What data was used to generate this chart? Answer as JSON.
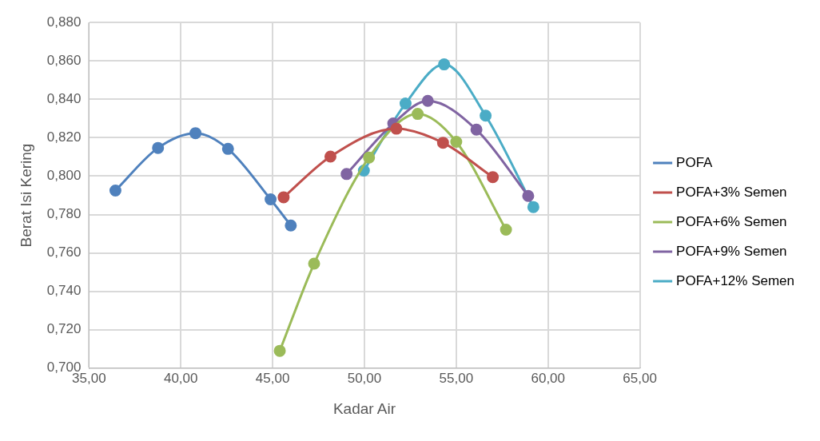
{
  "chart_data": {
    "type": "line",
    "xlabel": "Kadar Air",
    "ylabel": "Berat Isi Kering",
    "xlim": [
      35,
      65
    ],
    "xticks": [
      {
        "value": 35,
        "label": "35,00"
      },
      {
        "value": 40,
        "label": "40,00"
      },
      {
        "value": 45,
        "label": "45,00"
      },
      {
        "value": 50,
        "label": "50,00"
      },
      {
        "value": 55,
        "label": "55,00"
      },
      {
        "value": 60,
        "label": "60,00"
      },
      {
        "value": 65,
        "label": "65,00"
      }
    ],
    "ylim": [
      0.7,
      0.88
    ],
    "yticks": [
      {
        "value": 0.7,
        "label": "0,700"
      },
      {
        "value": 0.72,
        "label": "0,720"
      },
      {
        "value": 0.74,
        "label": "0,740"
      },
      {
        "value": 0.76,
        "label": "0,760"
      },
      {
        "value": 0.78,
        "label": "0,780"
      },
      {
        "value": 0.8,
        "label": "0,800"
      },
      {
        "value": 0.82,
        "label": "0,820"
      },
      {
        "value": 0.84,
        "label": "0,840"
      },
      {
        "value": 0.86,
        "label": "0,860"
      },
      {
        "value": 0.88,
        "label": "0,880"
      }
    ],
    "grid": true,
    "legend": "right",
    "marker": "circle",
    "line_style": "solid",
    "series": [
      {
        "name": "POFA",
        "color": "#4f81bd",
        "x": [
          36.44,
          38.76,
          40.8,
          42.57,
          44.89,
          45.99
        ],
        "values": [
          0.7925,
          0.8147,
          0.8224,
          0.8142,
          0.7879,
          0.7743
        ]
      },
      {
        "name": "POFA+3% Semen",
        "color": "#c0504d",
        "x": [
          45.6,
          48.15,
          51.74,
          54.28,
          56.99
        ],
        "values": [
          0.789,
          0.8102,
          0.8247,
          0.8174,
          0.7995
        ]
      },
      {
        "name": "POFA+6% Semen",
        "color": "#9bbb59",
        "x": [
          45.39,
          47.26,
          50.25,
          52.9,
          55.0,
          57.71
        ],
        "values": [
          0.709,
          0.7544,
          0.8097,
          0.8324,
          0.8179,
          0.7721
        ]
      },
      {
        "name": "POFA+9% Semen",
        "color": "#8064a2",
        "x": [
          49.03,
          51.57,
          53.45,
          56.1,
          58.92
        ],
        "values": [
          0.8011,
          0.8274,
          0.8392,
          0.8242,
          0.7897
        ]
      },
      {
        "name": "POFA+12% Semen",
        "color": "#4bacc6",
        "x": [
          49.97,
          52.24,
          54.34,
          56.6,
          59.2
        ],
        "values": [
          0.8029,
          0.8378,
          0.8582,
          0.8315,
          0.7839
        ]
      }
    ]
  }
}
